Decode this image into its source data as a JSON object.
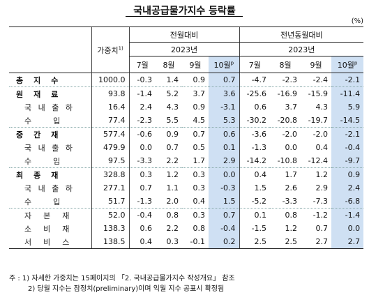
{
  "title": "국내공급물가지수 등락률",
  "unit": "(%)",
  "header": {
    "weight": "가중치",
    "weight_sup": "1)",
    "mom": "전월대비",
    "yoy": "전년동월대비",
    "year": "2023년",
    "months": [
      "7월",
      "8월",
      "9월",
      "10월"
    ],
    "prelim_sup": "p"
  },
  "rows": [
    {
      "label": "총　지　수",
      "bold": true,
      "weight": "1000.0",
      "mom": [
        "-0.3",
        "1.4",
        "0.9",
        "0.7"
      ],
      "yoy": [
        "-4.7",
        "-2.3",
        "-2.4",
        "-2.1"
      ]
    },
    {
      "label": "원　재　료",
      "bold": true,
      "weight": "93.8",
      "mom": [
        "-1.4",
        "5.2",
        "3.7",
        "3.6"
      ],
      "yoy": [
        "-25.6",
        "-16.9",
        "-15.9",
        "-11.4"
      ]
    },
    {
      "label": "국 내 출 하",
      "bold": false,
      "weight": "16.4",
      "mom": [
        "2.4",
        "4.3",
        "0.9",
        "-3.1"
      ],
      "yoy": [
        "0.6",
        "3.7",
        "4.3",
        "5.9"
      ]
    },
    {
      "label": "수　　입",
      "bold": false,
      "weight": "77.4",
      "mom": [
        "-2.3",
        "5.5",
        "4.5",
        "5.3"
      ],
      "yoy": [
        "-30.2",
        "-20.8",
        "-19.7",
        "-14.5"
      ]
    },
    {
      "label": "중　간　재",
      "bold": true,
      "weight": "577.4",
      "mom": [
        "-0.6",
        "0.9",
        "0.7",
        "0.6"
      ],
      "yoy": [
        "-3.6",
        "-2.0",
        "-2.0",
        "-2.1"
      ]
    },
    {
      "label": "국 내 출 하",
      "bold": false,
      "weight": "479.9",
      "mom": [
        "0.0",
        "0.7",
        "0.5",
        "0.1"
      ],
      "yoy": [
        "-1.3",
        "0.0",
        "0.4",
        "-0.4"
      ]
    },
    {
      "label": "수　　입",
      "bold": false,
      "weight": "97.5",
      "mom": [
        "-3.3",
        "2.2",
        "1.7",
        "2.9"
      ],
      "yoy": [
        "-14.2",
        "-10.8",
        "-12.4",
        "-9.7"
      ]
    },
    {
      "label": "최　종　재",
      "bold": true,
      "weight": "328.8",
      "mom": [
        "0.3",
        "1.2",
        "0.3",
        "0.0"
      ],
      "yoy": [
        "0.4",
        "1.7",
        "1.2",
        "0.9"
      ]
    },
    {
      "label": "국 내 출 하",
      "bold": false,
      "weight": "277.1",
      "mom": [
        "0.7",
        "1.1",
        "0.3",
        "-0.3"
      ],
      "yoy": [
        "1.5",
        "2.6",
        "2.9",
        "2.4"
      ]
    },
    {
      "label": "수　　입",
      "bold": false,
      "weight": "51.7",
      "mom": [
        "-1.3",
        "2.0",
        "0.4",
        "1.5"
      ],
      "yoy": [
        "-5.2",
        "-3.3",
        "-7.3",
        "-6.8"
      ]
    },
    {
      "label": "자　본　재",
      "bold": false,
      "weight": "52.0",
      "mom": [
        "-0.4",
        "0.8",
        "0.3",
        "0.7"
      ],
      "yoy": [
        "0.1",
        "0.8",
        "-1.2",
        "-1.4"
      ]
    },
    {
      "label": "소　비　재",
      "bold": false,
      "weight": "138.3",
      "mom": [
        "0.6",
        "2.2",
        "0.8",
        "-0.4"
      ],
      "yoy": [
        "-1.5",
        "1.2",
        "0.7",
        "0.0"
      ]
    },
    {
      "label": "서　비　스",
      "bold": false,
      "weight": "138.5",
      "mom": [
        "0.4",
        "0.3",
        "-0.1",
        "0.2"
      ],
      "yoy": [
        "2.5",
        "2.5",
        "2.7",
        "2.7"
      ]
    }
  ],
  "footnotes": [
    "주 : 1) 자세한 가중치는 15페이지의 「2. 국내공급물가지수 작성개요」 참조",
    "2) 당월 지수는 잠정치(preliminary)이며 익월 지수 공표시 확정됨"
  ],
  "colors": {
    "highlight": "#cfe0f3"
  }
}
